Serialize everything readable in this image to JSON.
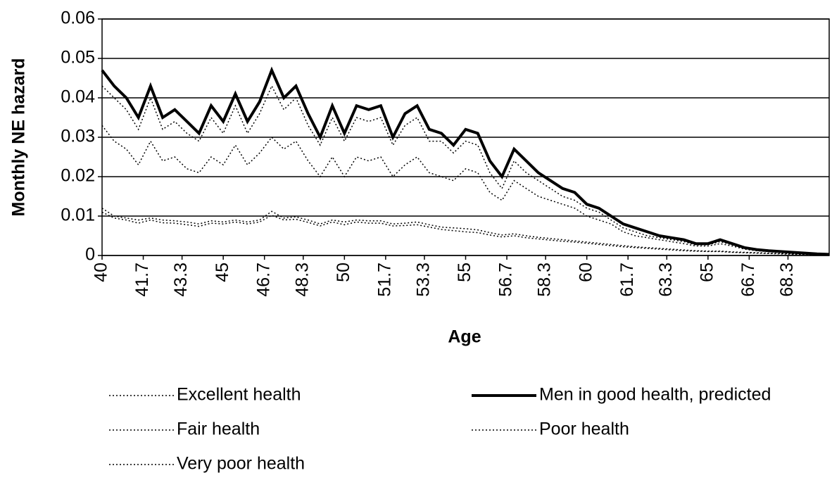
{
  "chart_data": {
    "type": "line",
    "xlabel": "Age",
    "ylabel": "Monthly NE hazard",
    "x": [
      40,
      40.5,
      41,
      41.5,
      42,
      42.5,
      43,
      43.5,
      44,
      44.5,
      45,
      45.5,
      46,
      46.5,
      47,
      47.5,
      48,
      48.5,
      49,
      49.5,
      50,
      50.5,
      51,
      51.5,
      52,
      52.5,
      53,
      53.5,
      54,
      54.5,
      55,
      55.5,
      56,
      56.5,
      57,
      57.5,
      58,
      58.5,
      59,
      59.5,
      60,
      60.5,
      61,
      61.5,
      62,
      62.5,
      63,
      63.5,
      64,
      64.5,
      65,
      65.5,
      66,
      66.5,
      67,
      67.5,
      68,
      68.5,
      69,
      69.5,
      70
    ],
    "xlim": [
      40,
      70
    ],
    "xticks": [
      40,
      41.7,
      43.3,
      45,
      46.7,
      48.3,
      50,
      51.7,
      53.3,
      55,
      56.7,
      58.3,
      60,
      61.7,
      63.3,
      65,
      66.7,
      68.3
    ],
    "ylim": [
      0,
      0.06
    ],
    "yticks": [
      0,
      0.01,
      0.02,
      0.03,
      0.04,
      0.05,
      0.06
    ],
    "grid": true,
    "legend": "bottom",
    "series": [
      {
        "name": "Excellent health",
        "color": "#000000",
        "line_style": "dotted",
        "values": [
          0.043,
          0.04,
          0.037,
          0.032,
          0.04,
          0.032,
          0.034,
          0.031,
          0.029,
          0.035,
          0.031,
          0.038,
          0.031,
          0.036,
          0.043,
          0.037,
          0.04,
          0.033,
          0.028,
          0.035,
          0.029,
          0.035,
          0.034,
          0.035,
          0.028,
          0.033,
          0.035,
          0.029,
          0.029,
          0.026,
          0.029,
          0.028,
          0.021,
          0.017,
          0.024,
          0.021,
          0.019,
          0.017,
          0.015,
          0.014,
          0.012,
          0.011,
          0.009,
          0.007,
          0.006,
          0.005,
          0.0045,
          0.004,
          0.0035,
          0.0027,
          0.0027,
          0.0035,
          0.0027,
          0.0018,
          0.0014,
          0.0011,
          0.0009,
          0.0007,
          0.0005,
          0.0004,
          0.0003
        ]
      },
      {
        "name": "Men in good health, predicted",
        "color": "#000000",
        "line_style": "solid",
        "values": [
          0.047,
          0.043,
          0.04,
          0.035,
          0.043,
          0.035,
          0.037,
          0.034,
          0.031,
          0.038,
          0.034,
          0.041,
          0.034,
          0.039,
          0.047,
          0.04,
          0.043,
          0.036,
          0.03,
          0.038,
          0.031,
          0.038,
          0.037,
          0.038,
          0.03,
          0.036,
          0.038,
          0.032,
          0.031,
          0.028,
          0.032,
          0.031,
          0.024,
          0.02,
          0.027,
          0.024,
          0.021,
          0.019,
          0.017,
          0.016,
          0.013,
          0.012,
          0.01,
          0.008,
          0.007,
          0.006,
          0.005,
          0.0045,
          0.004,
          0.003,
          0.003,
          0.004,
          0.003,
          0.002,
          0.0015,
          0.0012,
          0.001,
          0.0008,
          0.0006,
          0.0004,
          0.0003
        ]
      },
      {
        "name": "Fair health",
        "color": "#000000",
        "line_style": "dotted",
        "values": [
          0.033,
          0.029,
          0.027,
          0.023,
          0.029,
          0.024,
          0.025,
          0.022,
          0.021,
          0.025,
          0.023,
          0.028,
          0.023,
          0.026,
          0.03,
          0.027,
          0.029,
          0.024,
          0.02,
          0.025,
          0.02,
          0.025,
          0.024,
          0.025,
          0.02,
          0.023,
          0.025,
          0.021,
          0.02,
          0.019,
          0.022,
          0.021,
          0.016,
          0.014,
          0.019,
          0.017,
          0.015,
          0.014,
          0.013,
          0.012,
          0.01,
          0.009,
          0.008,
          0.006,
          0.005,
          0.0045,
          0.004,
          0.0035,
          0.003,
          0.0024,
          0.0024,
          0.003,
          0.0024,
          0.0016,
          0.0012,
          0.001,
          0.0008,
          0.0006,
          0.0005,
          0.0003,
          0.0002
        ]
      },
      {
        "name": "Poor health",
        "color": "#000000",
        "line_style": "dotted",
        "values": [
          0.012,
          0.01,
          0.0095,
          0.009,
          0.0095,
          0.009,
          0.0088,
          0.0085,
          0.008,
          0.0088,
          0.0085,
          0.009,
          0.0085,
          0.009,
          0.0112,
          0.0095,
          0.0098,
          0.009,
          0.008,
          0.009,
          0.0085,
          0.009,
          0.0088,
          0.0088,
          0.008,
          0.0082,
          0.0085,
          0.0078,
          0.0072,
          0.007,
          0.0068,
          0.0065,
          0.0058,
          0.0052,
          0.0055,
          0.005,
          0.0046,
          0.0043,
          0.004,
          0.0037,
          0.0034,
          0.0031,
          0.0028,
          0.0025,
          0.0022,
          0.002,
          0.0018,
          0.0016,
          0.0014,
          0.0012,
          0.0011,
          0.0011,
          0.0009,
          0.0008,
          0.0007,
          0.0006,
          0.0005,
          0.0004,
          0.0003,
          0.0002,
          0.0002
        ]
      },
      {
        "name": "Very poor health",
        "color": "#000000",
        "line_style": "dotted",
        "values": [
          0.011,
          0.0095,
          0.009,
          0.0082,
          0.009,
          0.0083,
          0.0082,
          0.0078,
          0.0074,
          0.0082,
          0.008,
          0.0085,
          0.008,
          0.0085,
          0.0102,
          0.009,
          0.0092,
          0.0084,
          0.0075,
          0.0085,
          0.0078,
          0.0085,
          0.0082,
          0.0082,
          0.0075,
          0.0076,
          0.0078,
          0.0072,
          0.0066,
          0.0063,
          0.006,
          0.0058,
          0.0052,
          0.0047,
          0.005,
          0.0045,
          0.0042,
          0.0039,
          0.0036,
          0.0034,
          0.0031,
          0.0028,
          0.0025,
          0.0022,
          0.002,
          0.0018,
          0.0016,
          0.0014,
          0.0012,
          0.0011,
          0.001,
          0.001,
          0.0008,
          0.0007,
          0.0006,
          0.0005,
          0.0004,
          0.0003,
          0.0003,
          0.0002,
          0.0001
        ]
      }
    ]
  }
}
